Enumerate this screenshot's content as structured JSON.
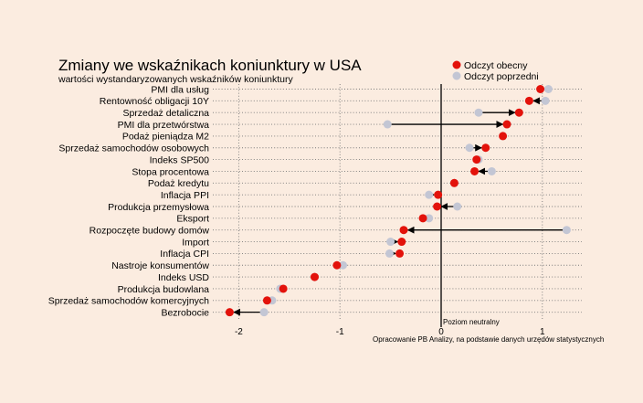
{
  "colors": {
    "background": "#fbece0",
    "current": "#e3120b",
    "previous": "#c3c6d4",
    "arrow": "#000000"
  },
  "chart_data": {
    "type": "scatter",
    "title": "Zmiany we wskaźnikach koniunktury w USA",
    "subtitle": "wartości wystandaryzowanych wskaźników koniunktury",
    "xlim": [
      -2.3,
      1.4
    ],
    "xticks": [
      -2,
      -1,
      0,
      1
    ],
    "xtick_labels": [
      "-2",
      "-1",
      "0",
      "1"
    ],
    "grid": true,
    "zero_line_label": "Poziom neutralny",
    "source": "Opracowanie PB Analizy, na podstawie danych urzędów statystycznych",
    "legend_position": "top-right",
    "legend": [
      {
        "name": "Odczyt obecny",
        "color": "#e3120b"
      },
      {
        "name": "Odczyt poprzedni",
        "color": "#c3c6d4"
      }
    ],
    "categories": [
      "PMI dla usług",
      "Rentowność obligacji 10Y",
      "Sprzedaż detaliczna",
      "PMI dla przetwórstwa",
      "Podaż pieniądza M2",
      "Sprzedaż samochodów osobowych",
      "Indeks SP500",
      "Stopa procentowa",
      "Podaż kredytu",
      "Inflacja PPI",
      "Produkcja przemysłowa",
      "Eksport",
      "Rozpoczęte budowy domów",
      "Import",
      "Inflacja CPI",
      "Nastroje konsumentów",
      "Indeks USD",
      "Produkcja budowlana",
      "Sprzedaż samochodów komercyjnych",
      "Bezrobocie"
    ],
    "series": [
      {
        "name": "Odczyt obecny",
        "values": [
          0.98,
          0.87,
          0.77,
          0.65,
          0.61,
          0.44,
          0.35,
          0.33,
          0.13,
          -0.03,
          -0.04,
          -0.18,
          -0.37,
          -0.39,
          -0.41,
          -1.03,
          -1.25,
          -1.56,
          -1.72,
          -2.09
        ]
      },
      {
        "name": "Odczyt poprzedni",
        "values": [
          1.06,
          1.03,
          0.37,
          -0.53,
          0.61,
          0.28,
          0.37,
          0.5,
          0.13,
          -0.12,
          0.16,
          -0.12,
          1.24,
          -0.5,
          -0.51,
          -0.97,
          -1.25,
          -1.59,
          -1.67,
          -1.75
        ]
      }
    ]
  }
}
